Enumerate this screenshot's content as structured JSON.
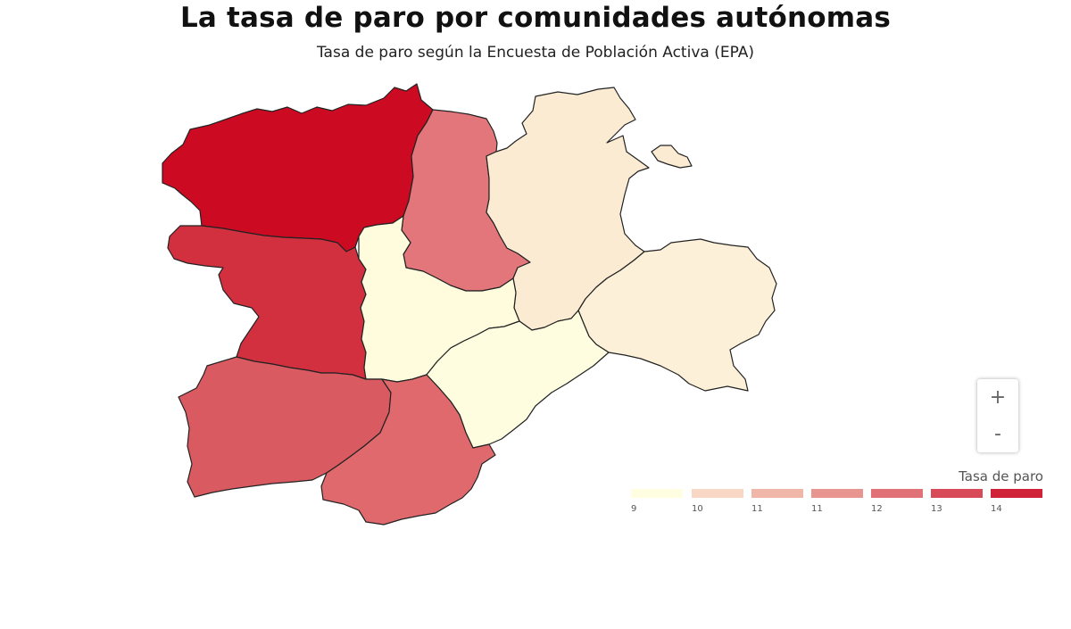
{
  "title": "La tasa de paro por comunidades autónomas",
  "subtitle": "Tasa de paro según la Encuesta de Población Activa (EPA)",
  "zoom": {
    "in_label": "+",
    "out_label": "-"
  },
  "legend": {
    "title": "Tasa de paro",
    "items": [
      {
        "label": "9",
        "color": "#fffee0"
      },
      {
        "label": "10",
        "color": "#f8d8c4"
      },
      {
        "label": "11",
        "color": "#f0b6a8"
      },
      {
        "label": "11",
        "color": "#e8948f"
      },
      {
        "label": "12",
        "color": "#e07277"
      },
      {
        "label": "13",
        "color": "#d84a58"
      },
      {
        "label": "14",
        "color": "#cf2239"
      }
    ]
  },
  "regions": [
    {
      "id": "nw-top",
      "color": "#cc0a22"
    },
    {
      "id": "north-mid",
      "color": "#e3767a"
    },
    {
      "id": "north-east",
      "color": "#faebd2"
    },
    {
      "id": "east",
      "color": "#fcf0d8"
    },
    {
      "id": "west-mid",
      "color": "#d2303f"
    },
    {
      "id": "center",
      "color": "#fefcdd"
    },
    {
      "id": "center-east",
      "color": "#fefde0"
    },
    {
      "id": "south-west",
      "color": "#da5a62"
    },
    {
      "id": "south",
      "color": "#e0696d"
    },
    {
      "id": "enclave",
      "color": "#faebd2"
    }
  ]
}
